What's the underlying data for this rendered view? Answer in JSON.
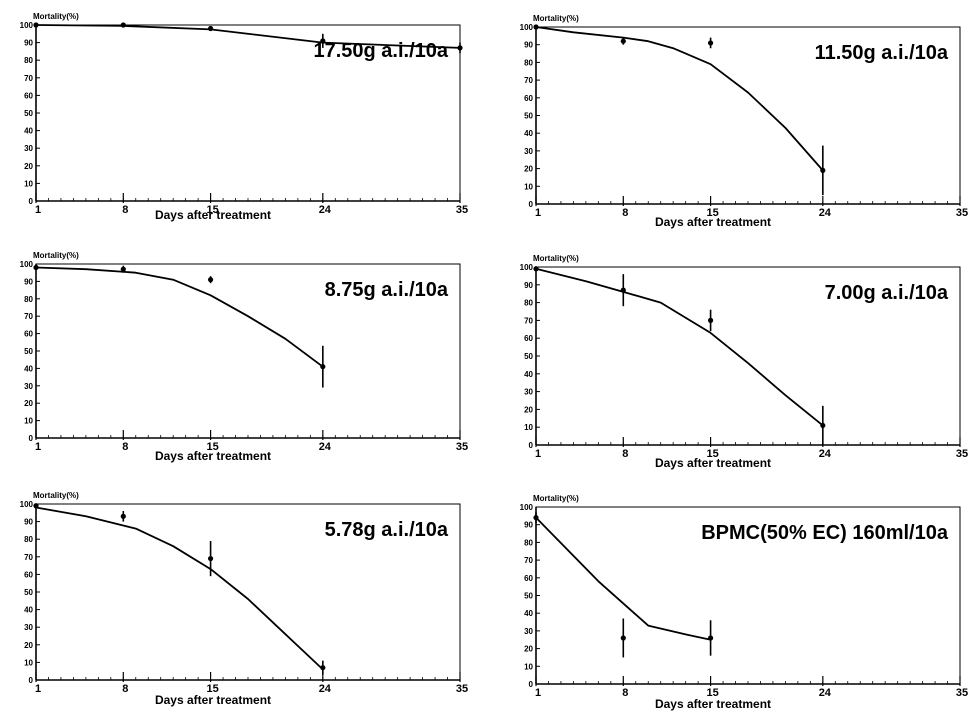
{
  "chart_data": [
    {
      "type": "line",
      "title": "17.50g a.i./10a",
      "ylabel": "Mortality(%)",
      "xlabel": "Days after treatment",
      "xlim": [
        1,
        35
      ],
      "ylim": [
        0,
        100
      ],
      "x_ticks": [
        "1",
        "8",
        "15",
        "24",
        "35"
      ],
      "y_ticks": [
        "0",
        "10",
        "20",
        "30",
        "40",
        "50",
        "60",
        "70",
        "80",
        "90",
        "100"
      ],
      "curve": {
        "x": [
          1,
          8,
          15,
          24,
          35
        ],
        "y": [
          100,
          99.5,
          97.5,
          90,
          87
        ]
      },
      "points": [
        {
          "x": 1,
          "y": 100,
          "err": 0
        },
        {
          "x": 8,
          "y": 100,
          "err": 0
        },
        {
          "x": 15,
          "y": 98,
          "err": 0.5
        },
        {
          "x": 24,
          "y": 91,
          "err": 4
        },
        {
          "x": 35,
          "y": 87,
          "err": 3
        }
      ]
    },
    {
      "type": "line",
      "title": "11.50g a.i./10a",
      "ylabel": "Mortality(%)",
      "xlabel": "Days after treatment",
      "xlim": [
        1,
        35
      ],
      "ylim": [
        0,
        100
      ],
      "x_ticks": [
        "1",
        "8",
        "15",
        "24",
        "35"
      ],
      "y_ticks": [
        "0",
        "10",
        "20",
        "30",
        "40",
        "50",
        "60",
        "70",
        "80",
        "90",
        "100"
      ],
      "curve": {
        "x": [
          1,
          4,
          8,
          10,
          12,
          15,
          18,
          21,
          24
        ],
        "y": [
          100,
          97,
          94,
          92,
          88,
          79,
          63,
          43,
          19
        ]
      },
      "points": [
        {
          "x": 1,
          "y": 100,
          "err": 0
        },
        {
          "x": 8,
          "y": 92,
          "err": 2
        },
        {
          "x": 15,
          "y": 91,
          "err": 3
        },
        {
          "x": 24,
          "y": 19,
          "err": 14
        }
      ]
    },
    {
      "type": "line",
      "title": "8.75g a.i./10a",
      "ylabel": "Mortality(%)",
      "xlabel": "Days after treatment",
      "xlim": [
        1,
        35
      ],
      "ylim": [
        0,
        100
      ],
      "x_ticks": [
        "1",
        "8",
        "15",
        "24",
        "35"
      ],
      "y_ticks": [
        "0",
        "10",
        "20",
        "30",
        "40",
        "50",
        "60",
        "70",
        "80",
        "90",
        "100"
      ],
      "curve": {
        "x": [
          1,
          5,
          9,
          12,
          15,
          18,
          21,
          24
        ],
        "y": [
          98,
          97,
          95,
          91,
          82,
          70,
          57,
          41
        ]
      },
      "points": [
        {
          "x": 1,
          "y": 98,
          "err": 1
        },
        {
          "x": 8,
          "y": 97,
          "err": 2
        },
        {
          "x": 15,
          "y": 91,
          "err": 2
        },
        {
          "x": 24,
          "y": 41,
          "err": 12
        }
      ]
    },
    {
      "type": "line",
      "title": "7.00g a.i./10a",
      "ylabel": "Mortality(%)",
      "xlabel": "Days after treatment",
      "xlim": [
        1,
        35
      ],
      "ylim": [
        0,
        100
      ],
      "x_ticks": [
        "1",
        "8",
        "15",
        "24",
        "35"
      ],
      "y_ticks": [
        "0",
        "10",
        "20",
        "30",
        "40",
        "50",
        "60",
        "70",
        "80",
        "90",
        "100"
      ],
      "curve": {
        "x": [
          1,
          5,
          8,
          11,
          15,
          18,
          21,
          24
        ],
        "y": [
          99,
          92,
          86,
          80,
          63,
          46,
          28,
          11
        ]
      },
      "points": [
        {
          "x": 1,
          "y": 99,
          "err": 1
        },
        {
          "x": 8,
          "y": 87,
          "err": 9
        },
        {
          "x": 15,
          "y": 70,
          "err": 6
        },
        {
          "x": 24,
          "y": 11,
          "err": 11
        }
      ]
    },
    {
      "type": "line",
      "title": "5.78g a.i./10a",
      "ylabel": "Mortality(%)",
      "xlabel": "Days after treatment",
      "xlim": [
        1,
        35
      ],
      "ylim": [
        0,
        100
      ],
      "x_ticks": [
        "1",
        "8",
        "15",
        "24",
        "35"
      ],
      "y_ticks": [
        "0",
        "10",
        "20",
        "30",
        "40",
        "50",
        "60",
        "70",
        "80",
        "90",
        "100"
      ],
      "curve": {
        "x": [
          1,
          5,
          9,
          12,
          15,
          18,
          21,
          24
        ],
        "y": [
          98,
          93,
          86,
          76,
          63,
          46,
          26,
          6
        ]
      },
      "points": [
        {
          "x": 1,
          "y": 99,
          "err": 1
        },
        {
          "x": 8,
          "y": 93,
          "err": 3
        },
        {
          "x": 15,
          "y": 69,
          "err": 10
        },
        {
          "x": 24,
          "y": 7,
          "err": 4
        }
      ]
    },
    {
      "type": "line",
      "title": "BPMC(50% EC) 160ml/10a",
      "ylabel": "Mortality(%)",
      "xlabel": "Days after treatment",
      "xlim": [
        1,
        35
      ],
      "ylim": [
        0,
        100
      ],
      "x_ticks": [
        "1",
        "8",
        "15",
        "24",
        "35"
      ],
      "y_ticks": [
        "0",
        "10",
        "20",
        "30",
        "40",
        "50",
        "60",
        "70",
        "80",
        "90",
        "100"
      ],
      "curve": {
        "x": [
          1,
          6,
          10,
          13,
          15
        ],
        "y": [
          94,
          58,
          33,
          28,
          25
        ]
      },
      "points": [
        {
          "x": 1,
          "y": 94,
          "err": 3
        },
        {
          "x": 8,
          "y": 26,
          "err": 11
        },
        {
          "x": 15,
          "y": 26,
          "err": 10
        }
      ]
    }
  ]
}
